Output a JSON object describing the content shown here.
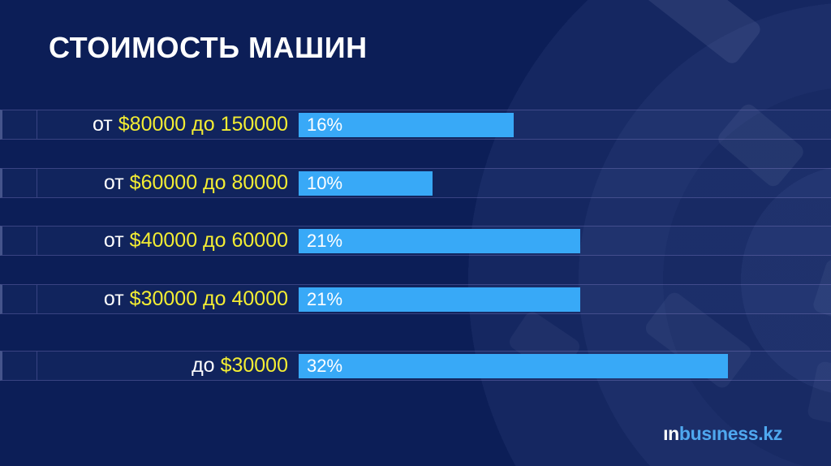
{
  "page": {
    "background_color": "#0c1e57"
  },
  "title": "СТОИМОСТЬ МАШИН",
  "chart_data": {
    "type": "bar",
    "orientation": "horizontal",
    "title": "СТОИМОСТЬ МАШИН",
    "value_unit": "%",
    "categories": [
      "от $80000 до 150000",
      "от $60000 до 80000",
      "от $40000 до 60000",
      "от $30000 до 40000",
      "до $30000"
    ],
    "values": [
      16,
      10,
      21,
      21,
      32
    ],
    "value_labels": [
      "16%",
      "10%",
      "21%",
      "21%",
      "32%"
    ],
    "bar_color": "#38a9f7",
    "category_prefix_color": "#ffffff",
    "category_accent_color": "#f3ed33",
    "rows": [
      {
        "prefix": "от",
        "range": "$80000 до 150000",
        "value": 16,
        "value_label": "16%"
      },
      {
        "prefix": "от",
        "range": "$60000 до 80000",
        "value": 10,
        "value_label": "10%"
      },
      {
        "prefix": "от",
        "range": "$40000 до 60000",
        "value": 21,
        "value_label": "21%"
      },
      {
        "prefix": "от",
        "range": "$30000 до 40000",
        "value": 21,
        "value_label": "21%"
      },
      {
        "prefix": "до",
        "range": "$30000",
        "value": 32,
        "value_label": "32%"
      }
    ]
  },
  "logo": {
    "prefix": "ın",
    "suffix": "busıness.kz",
    "prefix_color": "#ffffff",
    "suffix_color": "#4fa8ef"
  }
}
